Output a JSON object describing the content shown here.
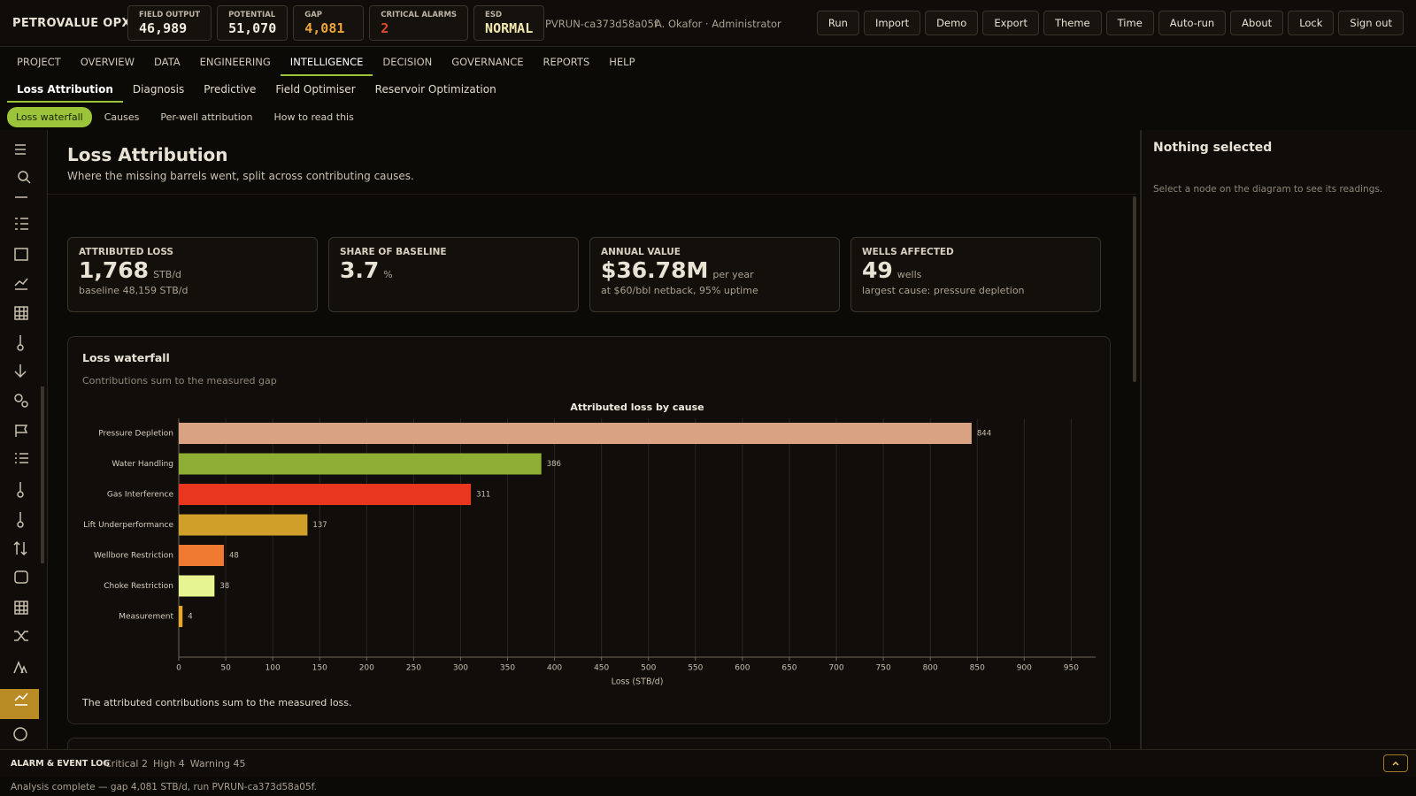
{
  "header": {
    "brand": "PETROVALUE OPX",
    "kpis": [
      {
        "label": "FIELD OUTPUT",
        "value": "46,989",
        "color": "#f1ebdf"
      },
      {
        "label": "POTENTIAL",
        "value": "51,070",
        "color": "#f1ebdf"
      },
      {
        "label": "GAP",
        "value": "4,081",
        "color": "#f0a53a"
      },
      {
        "label": "CRITICAL ALARMS",
        "value": "2",
        "color": "#e2492b"
      },
      {
        "label": "ESD",
        "value": "NORMAL",
        "color": "#f3e9b0"
      }
    ],
    "run": "PVRUN-ca373d58a05f",
    "user": "A. Okafor · Administrator",
    "buttons": [
      "Run",
      "Import",
      "Demo",
      "Export",
      "Theme",
      "Time",
      "Auto-run",
      "About",
      "Lock",
      "Sign out"
    ]
  },
  "nav": {
    "tabs": [
      "PROJECT",
      "OVERVIEW",
      "DATA",
      "ENGINEERING",
      "INTELLIGENCE",
      "DECISION",
      "GOVERNANCE",
      "REPORTS",
      "HELP"
    ],
    "active": 4
  },
  "subtabs": {
    "tabs": [
      "Loss Attribution",
      "Diagnosis",
      "Predictive",
      "Field Optimiser",
      "Reservoir Optimization"
    ],
    "active": 0
  },
  "pills": {
    "tabs": [
      "Loss waterfall",
      "Causes",
      "Per-well attribution",
      "How to read this"
    ],
    "active": 0
  },
  "page": {
    "title": "Loss Attribution",
    "subtitle": "Where the missing barrels went, split across contributing causes."
  },
  "cards": [
    {
      "label": "ATTRIBUTED LOSS",
      "value": "1,768",
      "unit": "STB/d",
      "note": "baseline 48,159 STB/d"
    },
    {
      "label": "SHARE OF BASELINE",
      "value": "3.7",
      "unit": "%",
      "note": ""
    },
    {
      "label": "ANNUAL VALUE",
      "value": "$36.78M",
      "unit": "per year",
      "note": "at $60/bbl netback, 95% uptime"
    },
    {
      "label": "WELLS AFFECTED",
      "value": "49",
      "unit": "wells",
      "note": "largest cause: pressure depletion"
    }
  ],
  "panel": {
    "title": "Loss waterfall",
    "subtitle": "Contributions sum to the measured gap",
    "note": "The attributed contributions sum to the measured loss."
  },
  "chart_data": {
    "type": "hbar",
    "title": "Attributed loss by cause",
    "x_label": "Loss (STB/d)",
    "categories": [
      "Pressure Depletion",
      "Water Handling",
      "Gas Interference",
      "Lift Underperformance",
      "Wellbore Restriction",
      "Choke Restriction",
      "Measurement"
    ],
    "values": [
      844,
      386,
      311,
      137,
      48,
      38,
      4
    ],
    "colors": [
      "#d9a283",
      "#8fae35",
      "#e8361f",
      "#cf9f2a",
      "#f07a32",
      "#e6f590",
      "#e6a72c"
    ],
    "xlim": [
      0,
      976
    ],
    "xticks": [
      0,
      50,
      100,
      150,
      200,
      250,
      300,
      350,
      400,
      450,
      500,
      550,
      600,
      650,
      700,
      750,
      800,
      850,
      900,
      950
    ],
    "grid": true
  },
  "inspector": {
    "title": "Nothing selected",
    "hint": "Select a node on the diagram to see its readings."
  },
  "log": {
    "title": "ALARM & EVENT LOG",
    "counts": [
      "Critical 2",
      "High 4",
      "Warning 45"
    ],
    "status": "Analysis complete — gap 4,081 STB/d, run PVRUN-ca373d58a05f."
  }
}
